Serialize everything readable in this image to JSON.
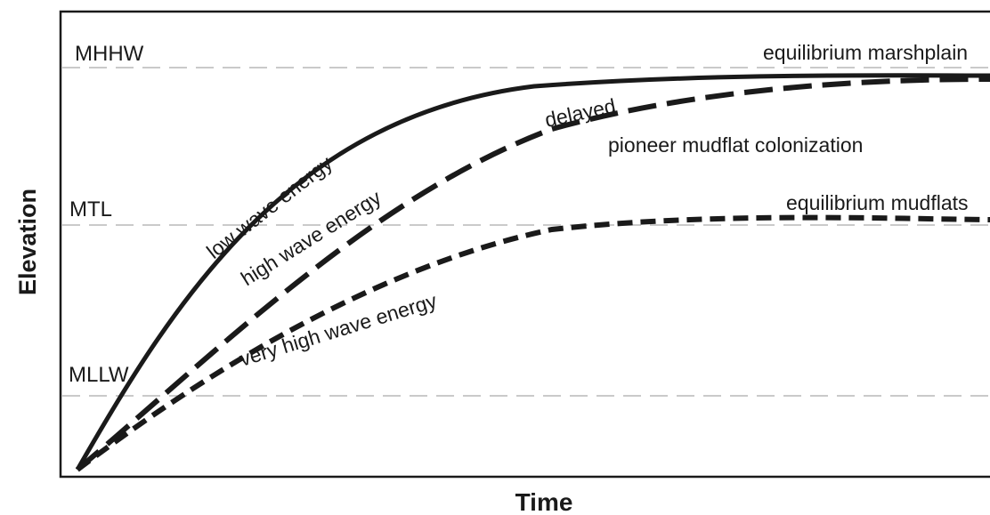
{
  "chart_data": {
    "type": "line",
    "xlabel": "Time",
    "ylabel": "Elevation",
    "reference_lines": [
      {
        "label": "MHHW"
      },
      {
        "label": "MTL"
      },
      {
        "label": "MLLW"
      }
    ],
    "series": [
      {
        "label": "low wave energy",
        "style": "solid"
      },
      {
        "label": "high wave energy",
        "style": "long-dash"
      },
      {
        "label": "very high wave energy",
        "style": "short-dash"
      }
    ],
    "annotations": [
      "delayed",
      "pioneer mudflat colonization",
      "equilibrium marshplain",
      "equilibrium mudflats"
    ],
    "grid": "dashed horizontal reference lines",
    "colors": {
      "curve": "#1a1a1a",
      "reference": "#b8b8b8",
      "frame": "#1a1a1a"
    }
  }
}
